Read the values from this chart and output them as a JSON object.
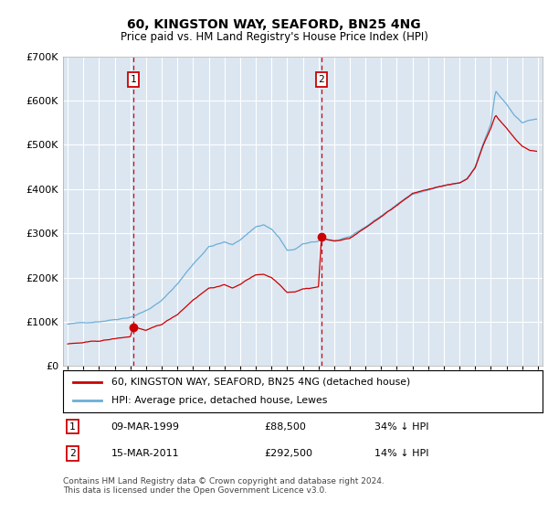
{
  "title": "60, KINGSTON WAY, SEAFORD, BN25 4NG",
  "subtitle": "Price paid vs. HM Land Registry's House Price Index (HPI)",
  "legend_line1": "60, KINGSTON WAY, SEAFORD, BN25 4NG (detached house)",
  "legend_line2": "HPI: Average price, detached house, Lewes",
  "sale1_label": "1",
  "sale1_date": "09-MAR-1999",
  "sale1_price": "£88,500",
  "sale1_hpi": "34% ↓ HPI",
  "sale1_year": 1999.19,
  "sale1_value": 88500,
  "sale2_label": "2",
  "sale2_date": "15-MAR-2011",
  "sale2_price": "£292,500",
  "sale2_hpi": "14% ↓ HPI",
  "sale2_year": 2011.19,
  "sale2_value": 292500,
  "footer": "Contains HM Land Registry data © Crown copyright and database right 2024.\nThis data is licensed under the Open Government Licence v3.0.",
  "hpi_color": "#6baed6",
  "price_color": "#cc0000",
  "marker_color": "#cc0000",
  "bg_color": "#dce6f1",
  "grid_color": "#ffffff",
  "annotation_box_color": "#cc0000",
  "vline_color": "#cc0000",
  "ylim": [
    0,
    700000
  ],
  "yticks": [
    0,
    100000,
    200000,
    300000,
    400000,
    500000,
    600000,
    700000
  ],
  "xlim_start": 1994.7,
  "xlim_end": 2025.3
}
